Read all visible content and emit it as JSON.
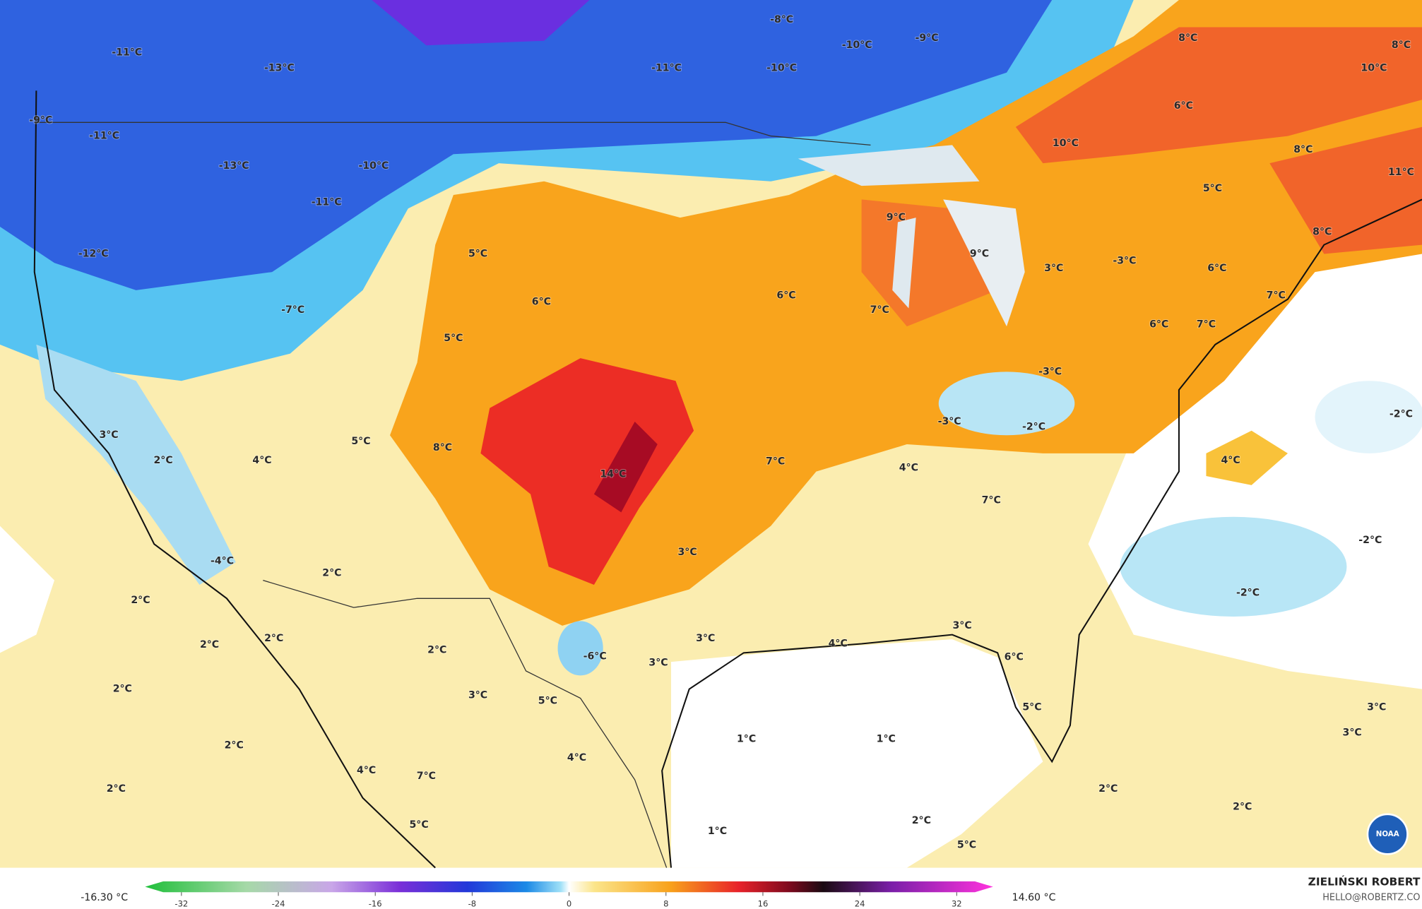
{
  "map": {
    "labels": [
      "-11°C",
      "-13°C",
      "-8°C",
      "-10°C",
      "-9°C",
      "-11°C",
      "-10°C",
      "8°C",
      "10°C",
      "8°C",
      "-9°C",
      "-11°C",
      "-13°C",
      "-10°C",
      "-11°C",
      "6°C",
      "10°C",
      "8°C",
      "5°C",
      "11°C",
      "-12°C",
      "5°C",
      "9°C",
      "9°C",
      "3°C",
      "-3°C",
      "6°C",
      "8°C",
      "-7°C",
      "6°C",
      "6°C",
      "7°C",
      "7°C",
      "5°C",
      "6°C",
      "7°C",
      "-3°C",
      "-3°C",
      "-2°C",
      "-2°C",
      "3°C",
      "5°C",
      "8°C",
      "2°C",
      "4°C",
      "7°C",
      "4°C",
      "4°C",
      "14°C",
      "7°C",
      "3°C",
      "-2°C",
      "-4°C",
      "2°C",
      "-2°C",
      "2°C",
      "3°C",
      "2°C",
      "2°C",
      "2°C",
      "3°C",
      "4°C",
      "-6°C",
      "6°C",
      "3°C",
      "2°C",
      "3°C",
      "5°C",
      "5°C",
      "3°C",
      "1°C",
      "1°C",
      "3°C",
      "2°C",
      "4°C",
      "4°C",
      "7°C",
      "2°C",
      "2°C",
      "2°C",
      "5°C",
      "1°C",
      "2°C",
      "5°C"
    ]
  },
  "legend": {
    "range": [
      -35,
      35
    ],
    "ticks": [
      -32,
      -24,
      -16,
      -8,
      0,
      8,
      16,
      24,
      32
    ],
    "min_label": "-16.30 °C",
    "max_label": "14.60 °C"
  },
  "credit": {
    "name": "ZIELIŃSKI ROBERT",
    "contact": "HELLO@ROBERTZ.CO"
  },
  "logo": "NOAA"
}
